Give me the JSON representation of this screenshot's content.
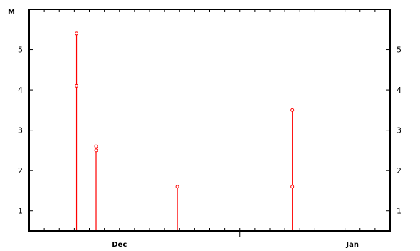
{
  "chart_data": {
    "type": "scatter",
    "unit_label": "M",
    "x_axis": {
      "range_days": [
        0,
        48
      ],
      "major_ticks": [
        {
          "label": "Dec",
          "day": 12
        },
        {
          "label": "Jan",
          "day": 43
        }
      ],
      "minor_tick_days": [
        2,
        4,
        6,
        8,
        10,
        12,
        14,
        16,
        18,
        20,
        22,
        24,
        26,
        28,
        30,
        32,
        34,
        36,
        38,
        40,
        42,
        44,
        46
      ]
    },
    "y_axis": {
      "ylim": [
        0.5,
        6.0
      ],
      "ticks": [
        1,
        2,
        3,
        4,
        5
      ],
      "tick_labels": [
        "1",
        "2",
        "3",
        "4",
        "5"
      ],
      "mirror_right": true
    },
    "grid": false,
    "color": "#ff0000",
    "series": [
      {
        "points": [
          {
            "day": 6.3,
            "value": 5.4
          },
          {
            "day": 6.3,
            "value": 4.1
          },
          {
            "day": 8.9,
            "value": 2.6
          },
          {
            "day": 8.9,
            "value": 2.5
          },
          {
            "day": 19.7,
            "value": 1.6
          },
          {
            "day": 35.0,
            "value": 3.5
          },
          {
            "day": 35.0,
            "value": 1.6
          }
        ]
      }
    ]
  }
}
